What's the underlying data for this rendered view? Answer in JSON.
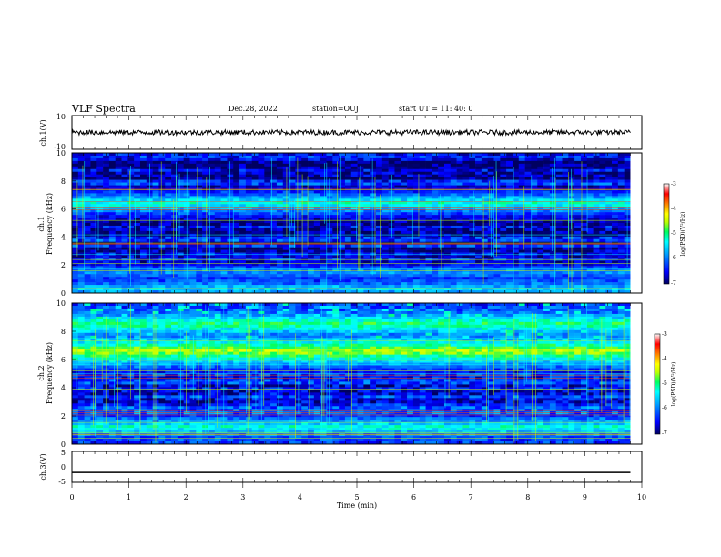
{
  "header": {
    "title": "VLF Spectra",
    "date": "Dec.28, 2022",
    "station": "station=OUJ",
    "start": "start  UT =   11: 40: 0"
  },
  "chart_data": [
    {
      "type": "line",
      "panel": "ch1-waveform",
      "ylabel": "ch.1(V)",
      "yticks": [
        "10",
        "-10"
      ],
      "ylim": [
        -10,
        10
      ],
      "xlim": [
        0,
        10
      ],
      "series": [
        {
          "values_description": "noise band",
          "mean": 0,
          "amplitude": 1.5,
          "end_x": 9.8
        }
      ]
    },
    {
      "type": "heatmap",
      "panel": "ch1-spectrogram",
      "ylabel": [
        "ch.1",
        "Frequency  (kHz)"
      ],
      "yticks": [
        "0",
        "2",
        "4",
        "6",
        "8",
        "10"
      ],
      "ylim": [
        0,
        10
      ],
      "xlim": [
        0,
        10
      ],
      "data_end_x": 9.8,
      "dominant_bands_khz": [
        {
          "center": 6.4,
          "level": -5.2
        },
        {
          "center": 1.5,
          "level": -5.8
        },
        {
          "center": 0.3,
          "level": -5.5
        }
      ],
      "background_level": -6.6,
      "colorbar": {
        "label": "log(PSD)(V²/Hz)",
        "ticks": [
          "-3",
          "-4",
          "-5",
          "-6",
          "-7"
        ],
        "range": [
          -7,
          -3
        ]
      }
    },
    {
      "type": "heatmap",
      "panel": "ch2-spectrogram",
      "ylabel": [
        "ch.2",
        "Frequency  (kHz)"
      ],
      "yticks": [
        "0",
        "2",
        "4",
        "6",
        "8",
        "10"
      ],
      "ylim": [
        0,
        10
      ],
      "xlim": [
        0,
        10
      ],
      "data_end_x": 9.8,
      "dominant_bands_khz": [
        {
          "center": 6.6,
          "level": -5.0
        },
        {
          "center": 8.5,
          "level": -5.4
        },
        {
          "center": 1.2,
          "level": -5.7
        }
      ],
      "background_level": -6.4,
      "colorbar": {
        "label": "log(PSD)(V²/Hz)",
        "ticks": [
          "-3",
          "-4",
          "-5",
          "-6",
          "-7"
        ],
        "range": [
          -7,
          -3
        ]
      }
    },
    {
      "type": "line",
      "panel": "ch3-waveform",
      "ylabel": "ch.3(V)",
      "yticks": [
        "5",
        "0",
        "-5"
      ],
      "ylim": [
        -5,
        5
      ],
      "xlim": [
        0,
        10
      ],
      "series": [
        {
          "values_description": "flat",
          "mean": -1.8,
          "amplitude": 0,
          "end_x": 9.8
        }
      ]
    }
  ],
  "xaxis": {
    "label": "Time  (min)",
    "ticks": [
      "0",
      "1",
      "2",
      "3",
      "4",
      "5",
      "6",
      "7",
      "8",
      "9",
      "10"
    ]
  },
  "colors": {
    "colormap": [
      "#000080",
      "#0000ff",
      "#00a0ff",
      "#00ffff",
      "#00ff60",
      "#c0ff00",
      "#ffff00",
      "#ff8000",
      "#ff0000",
      "#ffffff"
    ]
  }
}
